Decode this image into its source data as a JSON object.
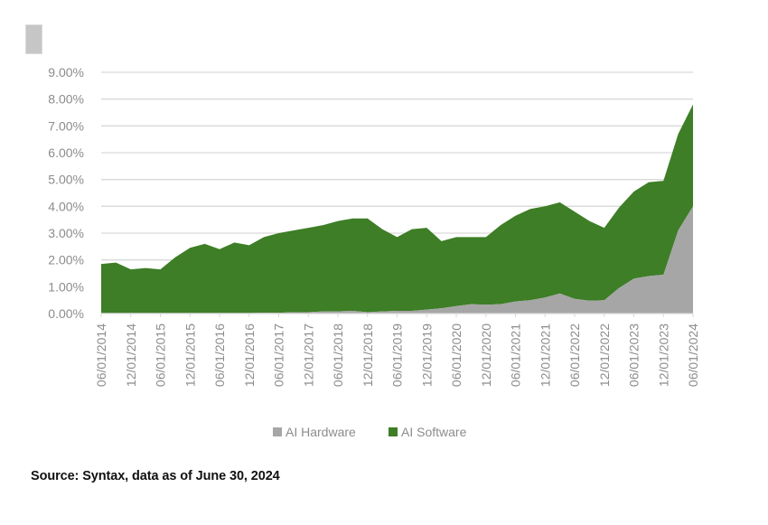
{
  "colors": {
    "hardware": "#a6a6a6",
    "software": "#3d7e26",
    "gridline": "#d9d9d9",
    "axis_text": "#8c8c8c",
    "source_text": "#111111"
  },
  "legend": {
    "hardware_label": "AI Hardware",
    "software_label": "AI Software"
  },
  "source": "Source: Syntax, data as of June 30, 2024",
  "chart_data": {
    "type": "area",
    "stacked": true,
    "title": "",
    "xlabel": "",
    "ylabel": "",
    "ylim": [
      0,
      9
    ],
    "y_ticks": [
      "0.00%",
      "1.00%",
      "2.00%",
      "3.00%",
      "4.00%",
      "5.00%",
      "6.00%",
      "7.00%",
      "8.00%",
      "9.00%"
    ],
    "x_tick_labels": [
      "06/01/2014",
      "12/01/2014",
      "06/01/2015",
      "12/01/2015",
      "06/01/2016",
      "12/01/2016",
      "06/01/2017",
      "12/01/2017",
      "06/01/2018",
      "12/01/2018",
      "06/01/2019",
      "12/01/2019",
      "06/01/2020",
      "12/01/2020",
      "06/01/2021",
      "12/01/2021",
      "06/01/2022",
      "12/01/2022",
      "06/01/2023",
      "12/01/2023",
      "06/01/2024"
    ],
    "grid": true,
    "legend_position": "bottom",
    "x": [
      "06/2014",
      "09/2014",
      "12/2014",
      "03/2015",
      "06/2015",
      "09/2015",
      "12/2015",
      "03/2016",
      "06/2016",
      "09/2016",
      "12/2016",
      "03/2017",
      "06/2017",
      "09/2017",
      "12/2017",
      "03/2018",
      "06/2018",
      "09/2018",
      "12/2018",
      "03/2019",
      "06/2019",
      "09/2019",
      "12/2019",
      "03/2020",
      "06/2020",
      "09/2020",
      "12/2020",
      "03/2021",
      "06/2021",
      "09/2021",
      "12/2021",
      "03/2022",
      "06/2022",
      "09/2022",
      "12/2022",
      "03/2023",
      "06/2023",
      "09/2023",
      "12/2023",
      "03/2024",
      "06/2024"
    ],
    "series": [
      {
        "name": "AI Hardware",
        "unit": "%",
        "values": [
          0.02,
          0.02,
          0.02,
          0.02,
          0.02,
          0.02,
          0.02,
          0.02,
          0.02,
          0.02,
          0.02,
          0.03,
          0.03,
          0.05,
          0.05,
          0.08,
          0.08,
          0.1,
          0.05,
          0.08,
          0.1,
          0.1,
          0.15,
          0.2,
          0.28,
          0.35,
          0.33,
          0.35,
          0.45,
          0.5,
          0.6,
          0.75,
          0.55,
          0.48,
          0.5,
          0.95,
          1.3,
          1.4,
          1.45,
          3.1,
          4.0
        ]
      },
      {
        "name": "AI Software",
        "unit": "%",
        "values": [
          1.83,
          1.88,
          1.63,
          1.68,
          1.63,
          2.08,
          2.43,
          2.58,
          2.38,
          2.63,
          2.53,
          2.82,
          2.97,
          3.05,
          3.15,
          3.22,
          3.37,
          3.45,
          3.5,
          3.07,
          2.75,
          3.05,
          3.05,
          2.5,
          2.57,
          2.5,
          2.52,
          2.95,
          3.2,
          3.4,
          3.4,
          3.4,
          3.25,
          2.97,
          2.7,
          3.0,
          3.25,
          3.5,
          3.5,
          3.6,
          3.8
        ]
      }
    ]
  }
}
